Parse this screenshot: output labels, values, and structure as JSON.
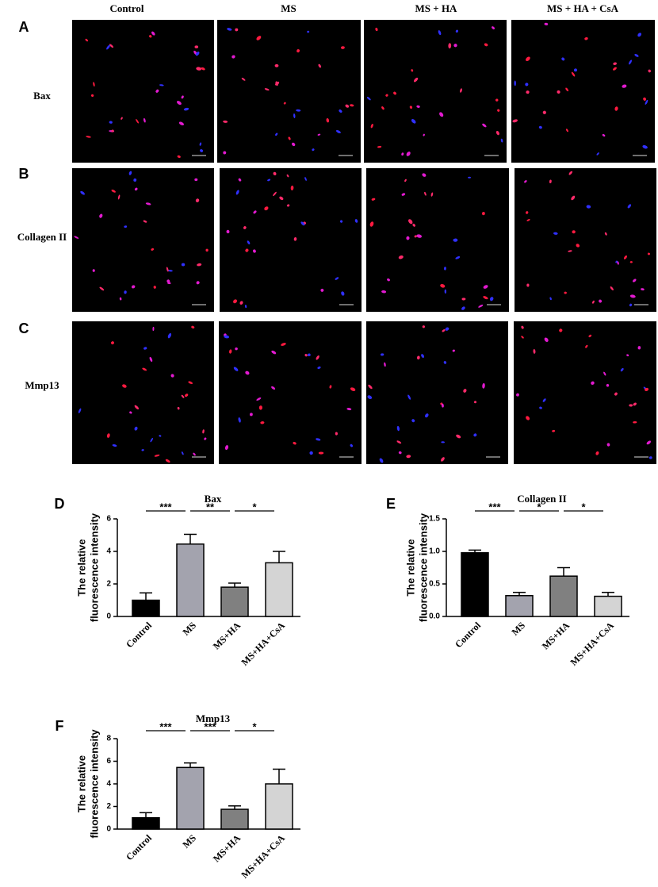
{
  "figure": {
    "columns": [
      "Control",
      "MS",
      "MS + HA",
      "MS + HA + CsA"
    ],
    "rows": [
      {
        "panel": "A",
        "label": "Bax"
      },
      {
        "panel": "B",
        "label": "Collagen II"
      },
      {
        "panel": "C",
        "label": "Mmp13"
      }
    ]
  },
  "chart_data": [
    {
      "type": "bar",
      "panel": "D",
      "title": "Bax",
      "y_label": [
        "The relative",
        "fluorescence intensity"
      ],
      "categories": [
        "Control",
        "MS",
        "MS+HA",
        "MS+HA+CsA"
      ],
      "values": [
        1.0,
        4.45,
        1.8,
        3.3
      ],
      "errors": [
        0.45,
        0.6,
        0.25,
        0.7
      ],
      "colors": [
        "#000000",
        "#a3a3ae",
        "#808080",
        "#d4d4d4"
      ],
      "ylim": [
        0,
        6
      ],
      "yticks": [
        0,
        2,
        4,
        6
      ],
      "significance": [
        "***",
        "**",
        "*"
      ]
    },
    {
      "type": "bar",
      "panel": "E",
      "title": "Collagen II",
      "y_label": [
        "The relative",
        "fluorescence intensity"
      ],
      "categories": [
        "Control",
        "MS",
        "MS+HA",
        "MS+HA+CsA"
      ],
      "values": [
        0.98,
        0.32,
        0.62,
        0.31
      ],
      "errors": [
        0.04,
        0.05,
        0.13,
        0.06
      ],
      "colors": [
        "#000000",
        "#a3a3ae",
        "#808080",
        "#d4d4d4"
      ],
      "ylim": [
        0,
        1.5
      ],
      "yticks": [
        {
          "value": 0,
          "label": "0.0"
        },
        0.5,
        {
          "value": 1,
          "label": "1.0"
        },
        1.5
      ],
      "significance": [
        "***",
        "*",
        "*"
      ]
    },
    {
      "type": "bar",
      "panel": "F",
      "title": "Mmp13",
      "y_label": [
        "The relative",
        "fluorescence intensity"
      ],
      "categories": [
        "Control",
        "MS",
        "MS+HA",
        "MS+HA+CsA"
      ],
      "values": [
        1.0,
        5.45,
        1.75,
        4.0
      ],
      "errors": [
        0.45,
        0.4,
        0.3,
        1.3
      ],
      "colors": [
        "#000000",
        "#a3a3ae",
        "#808080",
        "#d4d4d4"
      ],
      "ylim": [
        0,
        8
      ],
      "yticks": [
        0,
        2,
        4,
        6,
        8
      ],
      "significance": [
        "***",
        "***",
        "*"
      ]
    }
  ]
}
